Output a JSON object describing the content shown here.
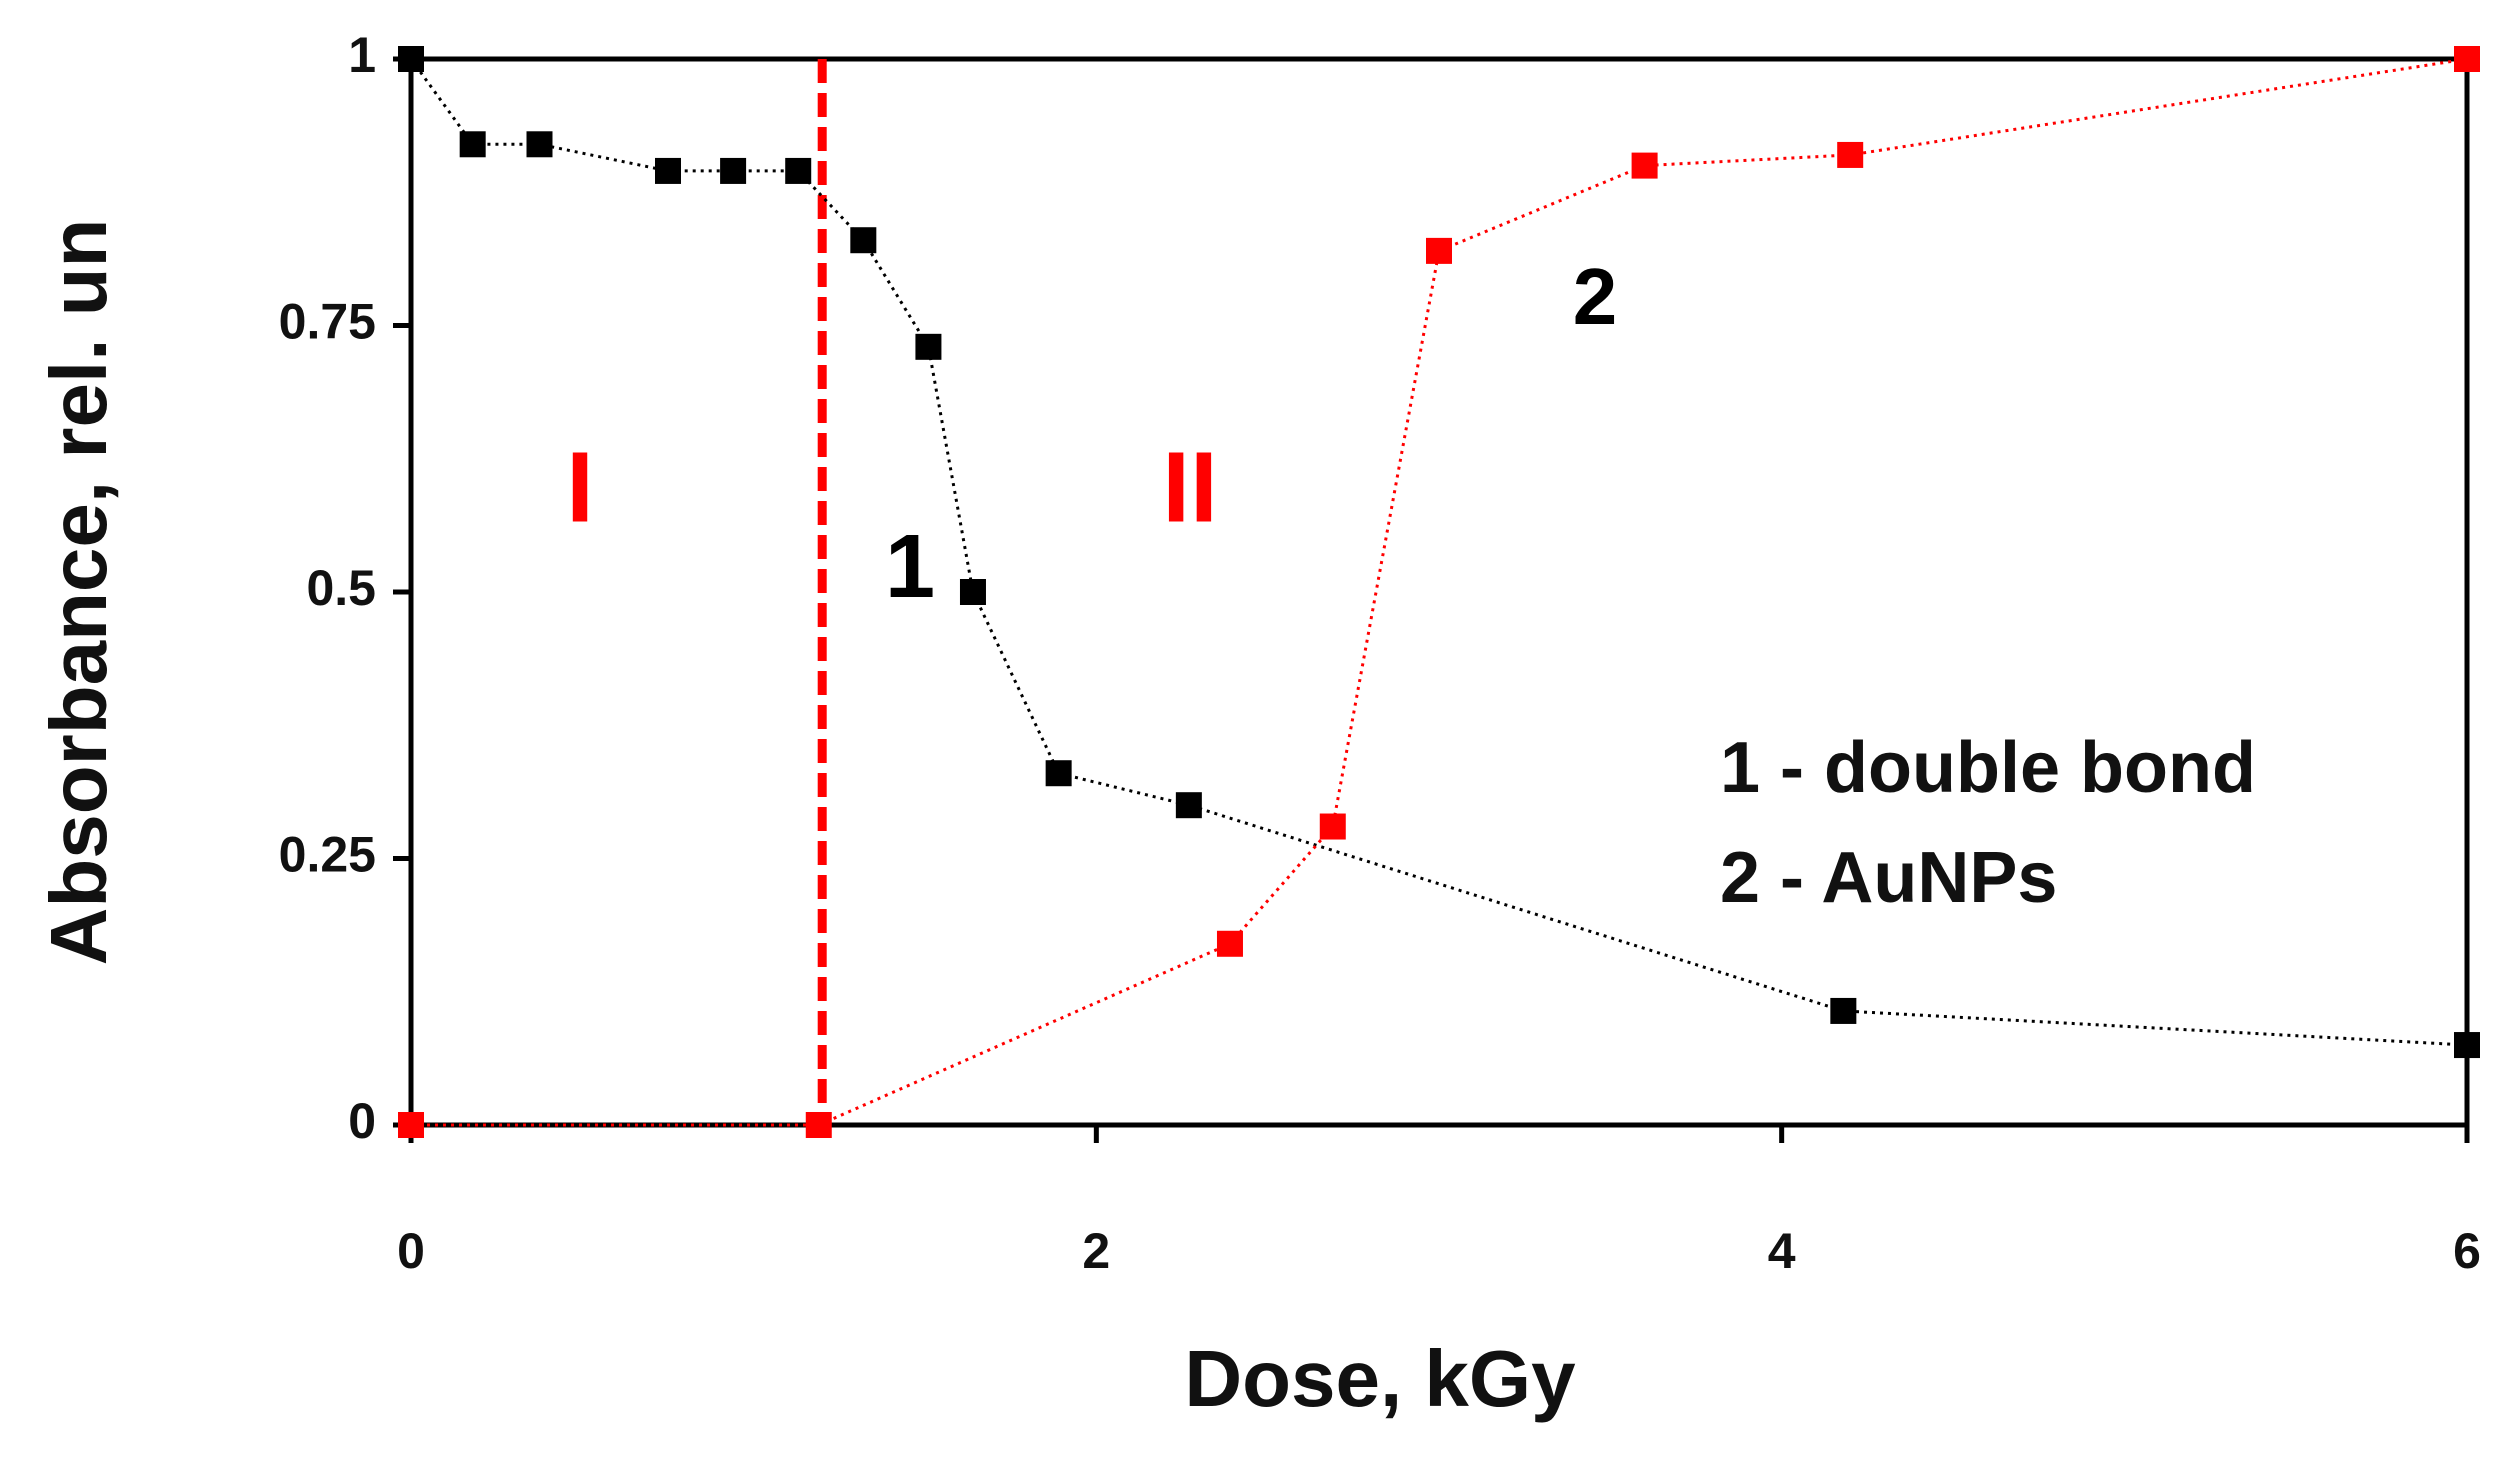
{
  "chart_data": {
    "type": "line",
    "x_label": "Dose, kGy",
    "y_label": "Absorbance, rel. un",
    "xlim": [
      0,
      6
    ],
    "ylim": [
      0,
      1
    ],
    "xticks": [
      0,
      2,
      4,
      6
    ],
    "yticks": [
      0,
      0.25,
      0.5,
      0.75,
      1
    ],
    "series": [
      {
        "name": "1 - double bond",
        "color": "#000000",
        "x": [
          0,
          0.18,
          0.375,
          0.75,
          0.94,
          1.13,
          1.32,
          1.51,
          1.64,
          1.89,
          2.27,
          4.18,
          6
        ],
        "values": [
          1,
          0.92,
          0.92,
          0.895,
          0.895,
          0.895,
          0.83,
          0.73,
          0.5,
          0.33,
          0.3,
          0.107,
          0.075
        ]
      },
      {
        "name": "2 - AuNPs",
        "color": "#ff0000",
        "x": [
          0,
          1.19,
          2.39,
          2.69,
          3.0,
          3.6,
          4.2,
          6
        ],
        "values": [
          0,
          0,
          0.17,
          0.28,
          0.82,
          0.9,
          0.91,
          1
        ]
      }
    ],
    "vline": {
      "x": 1.2,
      "color": "#ff0000"
    },
    "annotations": [
      {
        "text": "I",
        "color": "#ff0000"
      },
      {
        "text": "II",
        "color": "#ff0000"
      },
      {
        "text": "1",
        "color": "#000000"
      },
      {
        "text": "2",
        "color": "#000000"
      }
    ]
  }
}
